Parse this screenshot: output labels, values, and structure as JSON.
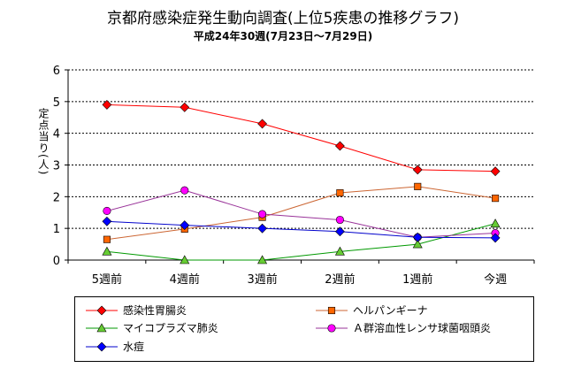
{
  "chart_data": {
    "type": "line",
    "title": "京都府感染症発生動向調査(上位5疾患の推移グラフ)",
    "subtitle": "平成24年30週(7月23日～7月29日)",
    "ylabel": "定点当り(人)",
    "xlabel": "",
    "categories": [
      "5週前",
      "4週前",
      "3週前",
      "2週前",
      "1週前",
      "今週"
    ],
    "ylim": [
      0,
      6
    ],
    "yticks": [
      "0",
      "1",
      "2",
      "3",
      "4",
      "5",
      "6"
    ],
    "grid": "horizontal dotted",
    "legend_position": "bottom",
    "series": [
      {
        "name": "感染性胃腸炎",
        "values": [
          4.9,
          4.82,
          4.3,
          3.6,
          2.85,
          2.8
        ],
        "color": "#ff0000",
        "marker": "diamond",
        "marker_color": "#ff0000"
      },
      {
        "name": "ヘルパンギーナ",
        "values": [
          0.65,
          0.98,
          1.35,
          2.12,
          2.32,
          1.95
        ],
        "color": "#cc6633",
        "marker": "square",
        "marker_color": "#ff6600"
      },
      {
        "name": "マイコプラズマ肺炎",
        "values": [
          0.27,
          0.0,
          0.0,
          0.27,
          0.5,
          1.15
        ],
        "color": "#009900",
        "marker": "triangle",
        "marker_color": "#66cc33"
      },
      {
        "name": "Ａ群溶血性レンサ球菌咽頭炎",
        "values": [
          1.55,
          2.2,
          1.45,
          1.27,
          0.72,
          0.85
        ],
        "color": "#993399",
        "marker": "circle",
        "marker_color": "#ff00ff"
      },
      {
        "name": "水痘",
        "values": [
          1.22,
          1.1,
          1.0,
          0.9,
          0.72,
          0.7
        ],
        "color": "#0000cc",
        "marker": "diamond",
        "marker_color": "#0000ff"
      }
    ]
  }
}
